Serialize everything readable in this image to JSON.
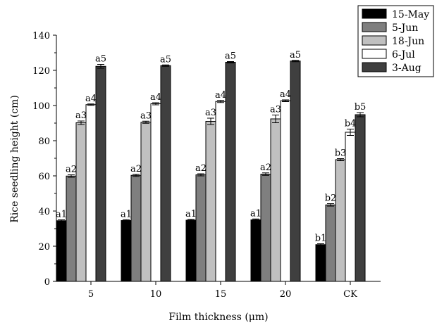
{
  "chart_data": {
    "type": "bar",
    "xlabel": "Film thickness (μm)",
    "ylabel": "Rice seedling height (cm)",
    "ylim": [
      0,
      140
    ],
    "yticks": [
      0,
      20,
      40,
      60,
      80,
      100,
      120,
      140
    ],
    "categories": [
      "5",
      "10",
      "15",
      "20",
      "CK"
    ],
    "legend_position": "top-right",
    "series": [
      {
        "name": "15-May",
        "color": "#000000",
        "values": [
          34.5,
          34.6,
          34.8,
          35.0,
          20.9
        ],
        "errors": [
          0.5,
          0.5,
          0.5,
          0.5,
          0.5
        ],
        "labels": [
          "a1",
          "a1",
          "a1",
          "a1",
          "b1"
        ]
      },
      {
        "name": "5-Jun",
        "color": "#7f7f7f",
        "values": [
          59.9,
          60.3,
          60.6,
          61.0,
          43.5
        ],
        "errors": [
          0.7,
          0.6,
          0.6,
          0.7,
          0.7
        ],
        "labels": [
          "a2",
          "a2",
          "a2",
          "a2",
          "b2"
        ]
      },
      {
        "name": "18-Jun",
        "color": "#c0c0c0",
        "values": [
          90.2,
          90.5,
          91.0,
          92.4,
          69.2
        ],
        "errors": [
          1.0,
          0.6,
          1.8,
          2.2,
          0.6
        ],
        "labels": [
          "a3",
          "a3",
          "a3",
          "a3",
          "b3"
        ]
      },
      {
        "name": "6-Jul",
        "color": "#ffffff",
        "values": [
          100.5,
          101.0,
          102.3,
          102.7,
          84.8
        ],
        "errors": [
          0.4,
          0.6,
          0.6,
          0.5,
          1.8
        ],
        "labels": [
          "a4",
          "a4",
          "a4",
          "a4",
          "b4"
        ]
      },
      {
        "name": "3-Aug",
        "color": "#3f3f3f",
        "values": [
          122.3,
          122.7,
          124.6,
          125.3,
          94.8
        ],
        "errors": [
          1.1,
          0.4,
          0.4,
          0.4,
          1.2
        ],
        "labels": [
          "a5",
          "a5",
          "a5",
          "a5",
          "b5"
        ]
      }
    ]
  }
}
